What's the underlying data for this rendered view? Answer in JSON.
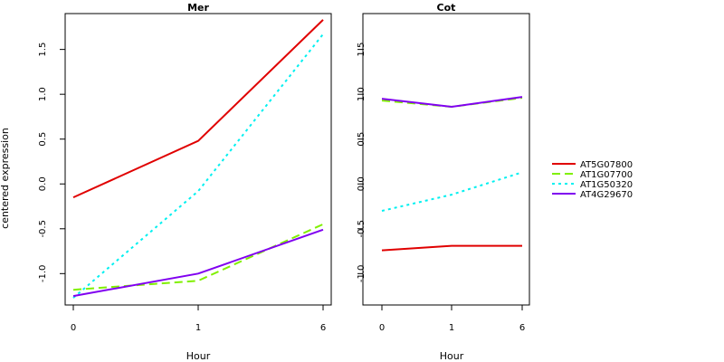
{
  "ylabel": "centered expression",
  "xlabel": "Hour",
  "legend": {
    "placement": "right",
    "entries": [
      {
        "name": "AT5G07800",
        "color": "#e00000",
        "dash": "solid"
      },
      {
        "name": "AT1G07700",
        "color": "#80f000",
        "dash": "dashed"
      },
      {
        "name": "AT1G50320",
        "color": "#00f0f0",
        "dash": "dotted"
      },
      {
        "name": "AT4G29670",
        "color": "#8000f0",
        "dash": "solid"
      }
    ]
  },
  "chart_data": [
    {
      "type": "line",
      "title": "Mer",
      "xlabel": "Hour",
      "ylabel": "centered expression",
      "x": [
        "0",
        "1",
        "6"
      ],
      "ylim": [
        -1.35,
        1.9
      ],
      "yticks": [
        "-1.0",
        "-0.5",
        "0.0",
        "0.5",
        "1.0",
        "1.5"
      ],
      "series": [
        {
          "name": "AT5G07800",
          "values": [
            -0.15,
            0.48,
            1.83
          ]
        },
        {
          "name": "AT1G07700",
          "values": [
            -1.18,
            -1.08,
            -0.45
          ]
        },
        {
          "name": "AT1G50320",
          "values": [
            -1.27,
            -0.08,
            1.67
          ]
        },
        {
          "name": "AT4G29670",
          "values": [
            -1.25,
            -1.0,
            -0.51
          ]
        }
      ]
    },
    {
      "type": "line",
      "title": "Cot",
      "xlabel": "Hour",
      "ylabel": "",
      "x": [
        "0",
        "1",
        "6"
      ],
      "ylim": [
        -1.35,
        1.9
      ],
      "yticks": [
        "-1.0",
        "-0.5",
        "0.0",
        "0.5",
        "1.0",
        "1.5"
      ],
      "series": [
        {
          "name": "AT5G07800",
          "values": [
            -0.74,
            -0.69,
            -0.69
          ]
        },
        {
          "name": "AT1G07700",
          "values": [
            0.93,
            0.86,
            0.96
          ]
        },
        {
          "name": "AT1G50320",
          "values": [
            -0.3,
            -0.12,
            0.13
          ]
        },
        {
          "name": "AT4G29670",
          "values": [
            0.95,
            0.86,
            0.97
          ]
        }
      ]
    }
  ]
}
